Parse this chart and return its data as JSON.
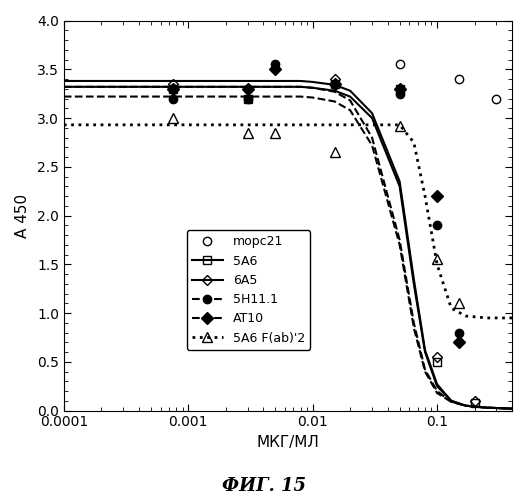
{
  "title": "",
  "xlabel": "МКГ/МЛ",
  "ylabel": "А 450",
  "fig_label": "ФИГ. 15",
  "xlim": [
    0.0001,
    0.4
  ],
  "ylim": [
    0.0,
    4.0
  ],
  "series": {
    "mopc21": {
      "label": "mopc21",
      "x": [
        0.00075,
        0.003,
        0.05,
        0.15,
        0.3
      ],
      "y": [
        3.3,
        3.3,
        3.55,
        3.4,
        3.2
      ]
    },
    "5A6": {
      "label": "5A6",
      "x": [
        0.00075,
        0.003,
        0.015,
        0.05,
        0.1,
        0.2
      ],
      "y": [
        3.3,
        3.2,
        3.35,
        3.3,
        0.5,
        0.08
      ],
      "curve_x": [
        0.0001,
        0.0002,
        0.0005,
        0.001,
        0.002,
        0.005,
        0.008,
        0.01,
        0.015,
        0.02,
        0.03,
        0.05,
        0.065,
        0.08,
        0.1,
        0.13,
        0.17,
        0.25,
        0.4
      ],
      "curve_y": [
        3.32,
        3.32,
        3.32,
        3.32,
        3.32,
        3.32,
        3.32,
        3.31,
        3.28,
        3.22,
        3.0,
        2.3,
        1.3,
        0.6,
        0.25,
        0.1,
        0.05,
        0.03,
        0.02
      ]
    },
    "6A5": {
      "label": "6A5",
      "x": [
        0.00075,
        0.003,
        0.015,
        0.05,
        0.1,
        0.2
      ],
      "y": [
        3.35,
        3.3,
        3.4,
        3.3,
        0.55,
        0.1
      ],
      "curve_x": [
        0.0001,
        0.0002,
        0.0005,
        0.001,
        0.002,
        0.005,
        0.008,
        0.01,
        0.015,
        0.02,
        0.03,
        0.05,
        0.065,
        0.08,
        0.1,
        0.13,
        0.17,
        0.25,
        0.4
      ],
      "curve_y": [
        3.38,
        3.38,
        3.38,
        3.38,
        3.38,
        3.38,
        3.38,
        3.37,
        3.34,
        3.28,
        3.05,
        2.35,
        1.35,
        0.62,
        0.27,
        0.1,
        0.05,
        0.03,
        0.02
      ]
    },
    "5H11": {
      "label": "5H11.1",
      "x": [
        0.00075,
        0.003,
        0.005,
        0.015,
        0.05,
        0.1,
        0.15
      ],
      "y": [
        3.2,
        3.2,
        3.55,
        3.35,
        3.25,
        1.9,
        0.8
      ],
      "curve_x": [
        0.0001,
        0.0002,
        0.0005,
        0.001,
        0.002,
        0.005,
        0.008,
        0.01,
        0.015,
        0.02,
        0.03,
        0.05,
        0.065,
        0.08,
        0.1,
        0.13,
        0.17,
        0.25,
        0.4
      ],
      "curve_y": [
        3.22,
        3.22,
        3.22,
        3.22,
        3.22,
        3.22,
        3.22,
        3.21,
        3.17,
        3.08,
        2.72,
        1.7,
        0.85,
        0.4,
        0.18,
        0.09,
        0.05,
        0.03,
        0.02
      ]
    },
    "AT10": {
      "label": "AT10",
      "x": [
        0.00075,
        0.003,
        0.005,
        0.015,
        0.05,
        0.1,
        0.15
      ],
      "y": [
        3.3,
        3.3,
        3.5,
        3.35,
        3.3,
        2.2,
        0.7
      ],
      "curve_x": [
        0.0001,
        0.0002,
        0.0005,
        0.001,
        0.002,
        0.005,
        0.008,
        0.01,
        0.015,
        0.02,
        0.03,
        0.05,
        0.065,
        0.08,
        0.1,
        0.13,
        0.17,
        0.25,
        0.4
      ],
      "curve_y": [
        3.32,
        3.32,
        3.32,
        3.32,
        3.32,
        3.32,
        3.32,
        3.31,
        3.27,
        3.18,
        2.8,
        1.75,
        0.9,
        0.42,
        0.2,
        0.09,
        0.05,
        0.03,
        0.02
      ]
    },
    "5A6_fab": {
      "label": "5A6 F(ab)'2",
      "x": [
        0.00075,
        0.003,
        0.005,
        0.015,
        0.05,
        0.1,
        0.15
      ],
      "y": [
        3.0,
        2.85,
        2.85,
        2.65,
        2.92,
        1.55,
        1.1
      ],
      "curve_x": [
        0.0001,
        0.0002,
        0.0005,
        0.001,
        0.002,
        0.005,
        0.008,
        0.01,
        0.015,
        0.02,
        0.03,
        0.05,
        0.065,
        0.08,
        0.1,
        0.13,
        0.17,
        0.25,
        0.4
      ],
      "curve_y": [
        2.93,
        2.93,
        2.93,
        2.93,
        2.93,
        2.93,
        2.93,
        2.93,
        2.93,
        2.93,
        2.93,
        2.93,
        2.75,
        2.2,
        1.5,
        1.05,
        0.97,
        0.95,
        0.95
      ]
    }
  },
  "background_color": "#ffffff"
}
